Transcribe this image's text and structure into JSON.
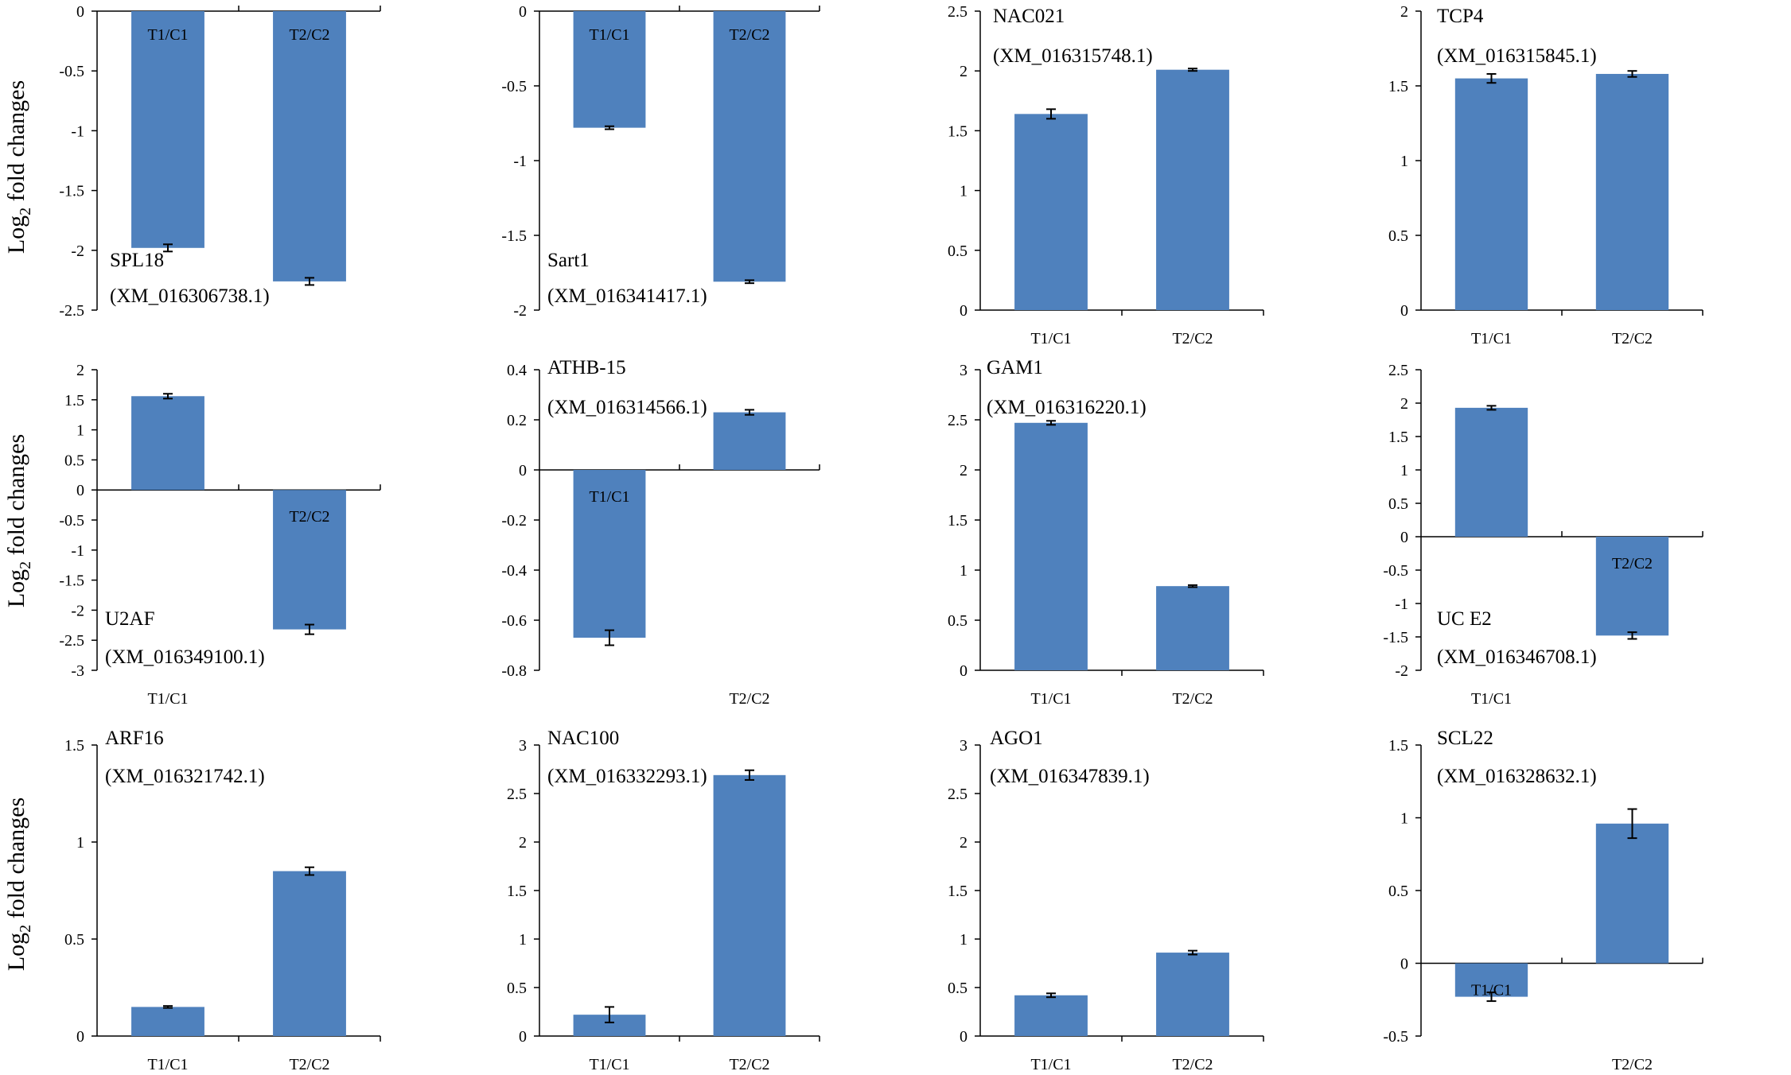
{
  "figure": {
    "y_axis_label_main": "Log",
    "y_axis_label_sub": "2",
    "y_axis_label_rest": " fold changes",
    "bar_color": "#4f81bd"
  },
  "chart_data": [
    {
      "type": "bar",
      "gene": "SPL18",
      "accession": "(XM_016306738.1)",
      "categories": [
        "T1/C1",
        "T2/C2"
      ],
      "values": [
        -1.98,
        -2.26
      ],
      "errors": [
        0.03,
        0.03
      ],
      "ylim": [
        -2.5,
        0
      ],
      "ticks": [
        "0",
        "-0.5",
        "-1",
        "-1.5",
        "-2",
        "-2.5"
      ],
      "tick_values": [
        0,
        -0.5,
        -1,
        -1.5,
        -2,
        -2.5
      ]
    },
    {
      "type": "bar",
      "gene": "Sart1",
      "accession": "(XM_016341417.1)",
      "categories": [
        "T1/C1",
        "T2/C2"
      ],
      "values": [
        -0.78,
        -1.81
      ],
      "errors": [
        0.01,
        0.01
      ],
      "ylim": [
        -2,
        0
      ],
      "ticks": [
        "0",
        "-0.5",
        "-1",
        "-1.5",
        "-2"
      ],
      "tick_values": [
        0,
        -0.5,
        -1,
        -1.5,
        -2
      ]
    },
    {
      "type": "bar",
      "gene": "NAC021",
      "accession": "(XM_016315748.1)",
      "categories": [
        "T1/C1",
        "T2/C2"
      ],
      "values": [
        1.64,
        2.01
      ],
      "errors": [
        0.04,
        0.01
      ],
      "ylim": [
        0,
        2.5
      ],
      "ticks": [
        "2.5",
        "2",
        "1.5",
        "1",
        "0.5",
        "0"
      ],
      "tick_values": [
        2.5,
        2,
        1.5,
        1,
        0.5,
        0
      ]
    },
    {
      "type": "bar",
      "gene": "TCP4",
      "accession": "(XM_016315845.1)",
      "categories": [
        "T1/C1",
        "T2/C2"
      ],
      "values": [
        1.55,
        1.58
      ],
      "errors": [
        0.03,
        0.02
      ],
      "ylim": [
        0,
        2
      ],
      "ticks": [
        "2",
        "1.5",
        "1",
        "0.5",
        "0"
      ],
      "tick_values": [
        2,
        1.5,
        1,
        0.5,
        0
      ]
    },
    {
      "type": "bar",
      "gene": "U2AF",
      "accession": "(XM_016349100.1)",
      "categories": [
        "T1/C1",
        "T2/C2"
      ],
      "values": [
        1.56,
        -2.32
      ],
      "errors": [
        0.04,
        0.08
      ],
      "ylim": [
        -3,
        2
      ],
      "ticks": [
        "2",
        "1.5",
        "1",
        "0.5",
        "0",
        "-0.5",
        "-1",
        "-1.5",
        "-2",
        "-2.5",
        "-3"
      ],
      "tick_values": [
        2,
        1.5,
        1,
        0.5,
        0,
        -0.5,
        -1,
        -1.5,
        -2,
        -2.5,
        -3
      ]
    },
    {
      "type": "bar",
      "gene": "ATHB-15",
      "accession": "(XM_016314566.1)",
      "categories": [
        "T1/C1",
        "T2/C2"
      ],
      "values": [
        -0.67,
        0.23
      ],
      "errors": [
        0.03,
        0.01
      ],
      "ylim": [
        -0.8,
        0.4
      ],
      "ticks": [
        "0.4",
        "0.2",
        "0",
        "-0.2",
        "-0.4",
        "-0.6",
        "-0.8"
      ],
      "tick_values": [
        0.4,
        0.2,
        0,
        -0.2,
        -0.4,
        -0.6,
        -0.8
      ]
    },
    {
      "type": "bar",
      "gene": "GAM1",
      "accession": "(XM_016316220.1)",
      "categories": [
        "T1/C1",
        "T2/C2"
      ],
      "values": [
        2.47,
        0.84
      ],
      "errors": [
        0.02,
        0.01
      ],
      "ylim": [
        0,
        3
      ],
      "ticks": [
        "3",
        "2.5",
        "2",
        "1.5",
        "1",
        "0.5",
        "0"
      ],
      "tick_values": [
        3,
        2.5,
        2,
        1.5,
        1,
        0.5,
        0
      ]
    },
    {
      "type": "bar",
      "gene": "UC E2",
      "accession": "(XM_016346708.1)",
      "categories": [
        "T1/C1",
        "T2/C2"
      ],
      "values": [
        1.93,
        -1.48
      ],
      "errors": [
        0.03,
        0.05
      ],
      "ylim": [
        -2,
        2.5
      ],
      "ticks": [
        "2.5",
        "2",
        "1.5",
        "1",
        "0.5",
        "0",
        "-0.5",
        "-1",
        "-1.5",
        "-2"
      ],
      "tick_values": [
        2.5,
        2,
        1.5,
        1,
        0.5,
        0,
        -0.5,
        -1,
        -1.5,
        -2
      ]
    },
    {
      "type": "bar",
      "gene": "ARF16",
      "accession": "(XM_016321742.1)",
      "categories": [
        "T1/C1",
        "T2/C2"
      ],
      "values": [
        0.15,
        0.85
      ],
      "errors": [
        0.005,
        0.02
      ],
      "ylim": [
        0,
        1.5
      ],
      "ticks": [
        "1.5",
        "1",
        "0.5",
        "0"
      ],
      "tick_values": [
        1.5,
        1,
        0.5,
        0
      ]
    },
    {
      "type": "bar",
      "gene": "NAC100",
      "accession": "(XM_016332293.1)",
      "categories": [
        "T1/C1",
        "T2/C2"
      ],
      "values": [
        0.22,
        2.69
      ],
      "errors": [
        0.08,
        0.05
      ],
      "ylim": [
        0,
        3
      ],
      "ticks": [
        "3",
        "2.5",
        "2",
        "1.5",
        "1",
        "0.5",
        "0"
      ],
      "tick_values": [
        3,
        2.5,
        2,
        1.5,
        1,
        0.5,
        0
      ]
    },
    {
      "type": "bar",
      "gene": "AGO1",
      "accession": "(XM_016347839.1)",
      "categories": [
        "T1/C1",
        "T2/C2"
      ],
      "values": [
        0.42,
        0.86
      ],
      "errors": [
        0.02,
        0.02
      ],
      "ylim": [
        0,
        3
      ],
      "ticks": [
        "3",
        "2.5",
        "2",
        "1.5",
        "1",
        "0.5",
        "0"
      ],
      "tick_values": [
        3,
        2.5,
        2,
        1.5,
        1,
        0.5,
        0
      ]
    },
    {
      "type": "bar",
      "gene": "SCL22",
      "accession": "(XM_016328632.1)",
      "categories": [
        "T1/C1",
        "T2/C2"
      ],
      "values": [
        -0.23,
        0.96
      ],
      "errors": [
        0.03,
        0.1
      ],
      "ylim": [
        -0.5,
        1.5
      ],
      "ticks": [
        "1.5",
        "1",
        "0.5",
        "0",
        "-0.5"
      ],
      "tick_values": [
        1.5,
        1,
        0.5,
        0,
        -0.5
      ]
    }
  ]
}
